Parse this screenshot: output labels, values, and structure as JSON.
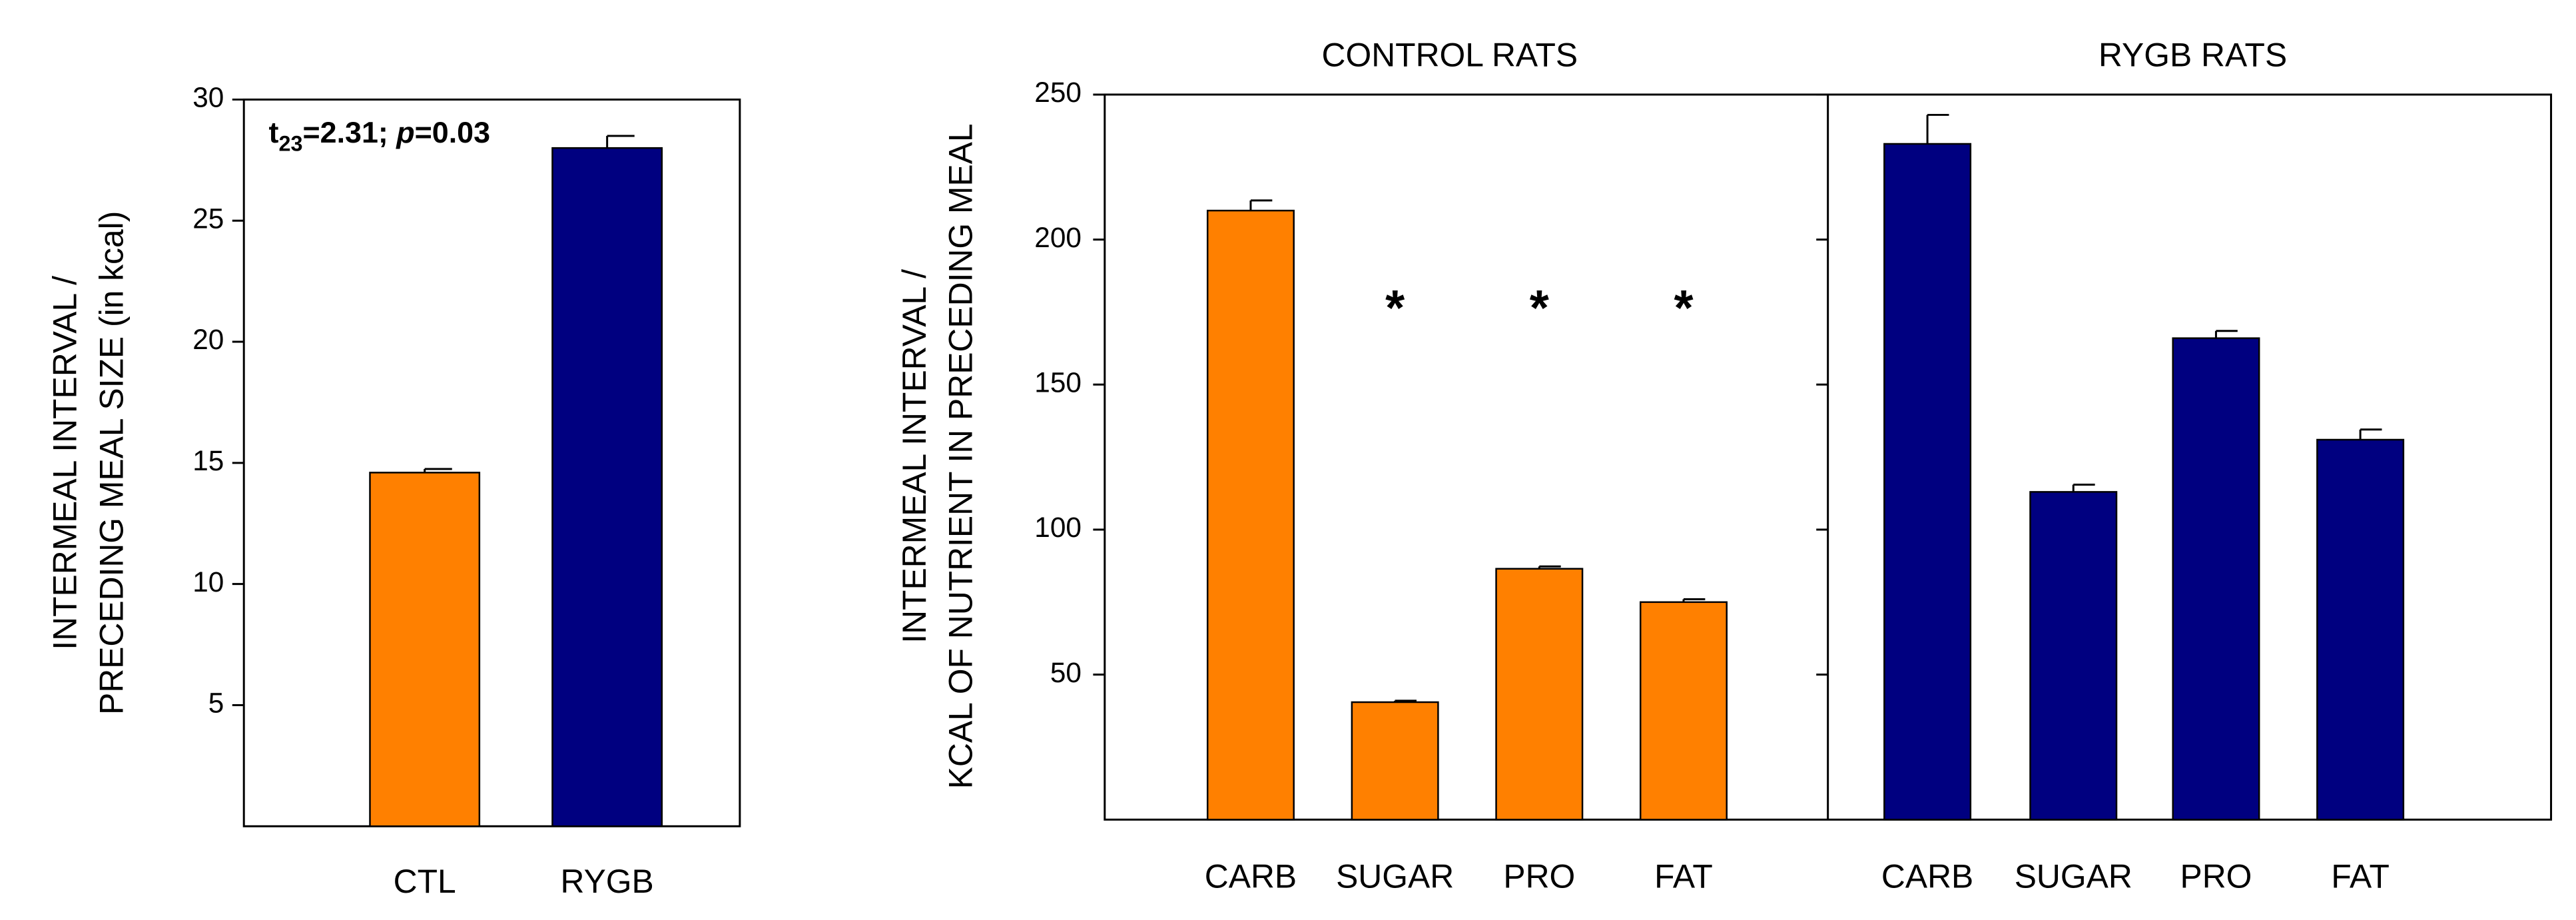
{
  "chart_data": [
    {
      "type": "bar",
      "ylabel": [
        "INTERMEAL INTERVAL /",
        "PRECEDING MEAL SIZE (in kcal)"
      ],
      "annotation": {
        "t": "t",
        "sub": "23",
        "rest": "=2.31; ",
        "p": "p",
        "end": "=0.03"
      },
      "categories": [
        "CTL",
        "RYGB"
      ],
      "values": [
        14.6,
        28.0
      ],
      "errors": [
        0.15,
        0.5
      ],
      "colors": [
        "#ff8000",
        "#000080"
      ],
      "ylim": [
        0,
        30
      ],
      "yticks": [
        5,
        10,
        15,
        20,
        25,
        30
      ]
    },
    {
      "type": "bar",
      "ylabel": [
        "INTERMEAL INTERVAL /",
        "KCAL OF NUTRIENT IN PRECEDING MEAL"
      ],
      "ylim": [
        0,
        250
      ],
      "yticks": [
        50,
        100,
        150,
        200,
        250
      ],
      "panels": [
        {
          "title": "CONTROL RATS",
          "color": "#ff8000",
          "categories": [
            "CARB",
            "SUGAR",
            "PRO",
            "FAT"
          ],
          "values": [
            210,
            40.5,
            86.5,
            75
          ],
          "errors": [
            3.5,
            0.5,
            0.8,
            1
          ],
          "annotations": [
            null,
            "*",
            "*",
            "*"
          ]
        },
        {
          "title": "RYGB RATS",
          "color": "#000080",
          "categories": [
            "CARB",
            "SUGAR",
            "PRO",
            "FAT"
          ],
          "values": [
            233,
            113,
            166,
            131
          ],
          "errors": [
            10,
            2.5,
            2.5,
            3.5
          ]
        }
      ]
    }
  ]
}
